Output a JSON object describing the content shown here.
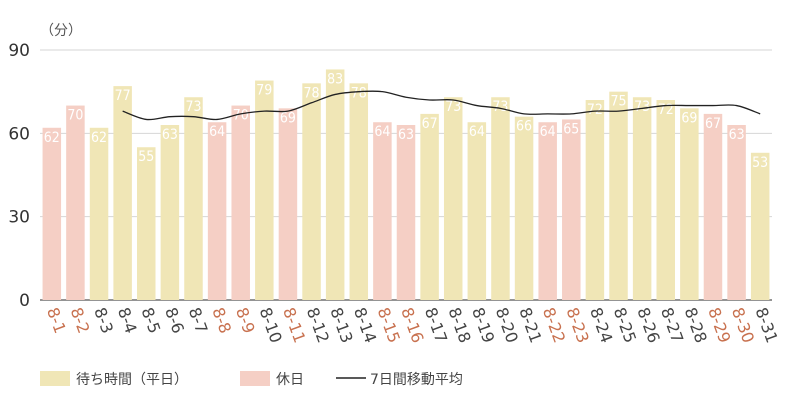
{
  "chart_data": {
    "type": "bar",
    "unit_label": "（分）",
    "ylim": [
      0,
      90
    ],
    "yticks": [
      0,
      30,
      60,
      90
    ],
    "grid": true,
    "legend_position": "bottom-left",
    "categories": [
      "8-1",
      "8-2",
      "8-3",
      "8-4",
      "8-5",
      "8-6",
      "8-7",
      "8-8",
      "8-9",
      "8-10",
      "8-11",
      "8-12",
      "8-13",
      "8-14",
      "8-15",
      "8-16",
      "8-17",
      "8-18",
      "8-19",
      "8-20",
      "8-21",
      "8-22",
      "8-23",
      "8-24",
      "8-25",
      "8-26",
      "8-27",
      "8-28",
      "8-29",
      "8-30",
      "8-31"
    ],
    "values": [
      62,
      70,
      62,
      77,
      55,
      63,
      73,
      64,
      70,
      79,
      69,
      78,
      83,
      78,
      64,
      63,
      67,
      73,
      64,
      73,
      66,
      64,
      65,
      72,
      75,
      73,
      72,
      69,
      67,
      63,
      53
    ],
    "holiday": [
      true,
      true,
      false,
      false,
      false,
      false,
      false,
      true,
      true,
      false,
      true,
      false,
      false,
      false,
      true,
      true,
      false,
      false,
      false,
      false,
      false,
      true,
      true,
      false,
      false,
      false,
      false,
      false,
      true,
      true,
      false
    ],
    "moving_average": [
      null,
      null,
      null,
      68,
      65,
      66,
      66,
      65,
      67,
      68,
      68,
      71,
      74,
      75,
      75,
      73,
      72,
      72,
      70,
      69,
      67,
      67,
      67,
      68,
      68,
      69,
      70,
      70,
      70,
      70,
      67
    ],
    "series": [
      {
        "name": "待ち時間（平日）",
        "color": "#f0e6b6"
      },
      {
        "name": "休日",
        "color": "#f5cfc5"
      },
      {
        "name": "7日間移動平均",
        "color": "#222222"
      }
    ],
    "colors": {
      "weekday_label": "#444444",
      "holiday_label": "#c8714f",
      "data_label": "#ffffff",
      "grid": "#d6d6d6",
      "axis": "#555555"
    }
  }
}
